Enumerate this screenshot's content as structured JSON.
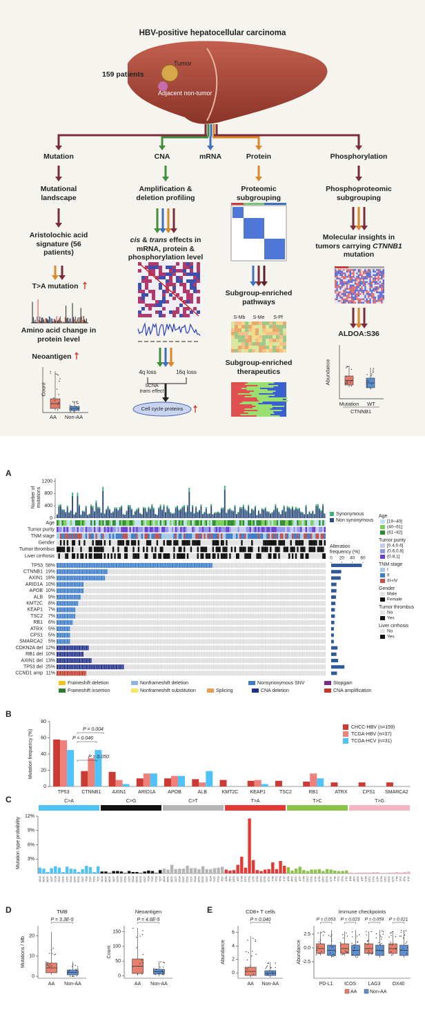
{
  "abstract": {
    "title": "HBV-positive hepatocellular carcinoma",
    "patients": "159 patients",
    "tumor": "Tumor",
    "adjacent": "Adjacent non-tumor",
    "branches": [
      "Mutation",
      "CNA",
      "mRNA",
      "Protein",
      "Phosphorylation"
    ],
    "mutation": {
      "landscape": "Mutational landscape",
      "signature": "Aristolochic acid signature (56 patients)",
      "ta": "T>A mutation",
      "amino": "Amino acid change in protein level",
      "neoantigen": "Neoantigen",
      "y_label": "Count",
      "groups": [
        "AA",
        "Non-AA"
      ]
    },
    "cna": {
      "profiling": "Amplification & deletion profiling",
      "effects": [
        "cis",
        " & ",
        "trans",
        " effects in mRNA, protein & phosphorylation level"
      ],
      "loss": [
        "4q loss",
        "16q loss"
      ],
      "scna": [
        "SCNA",
        "trans effect"
      ],
      "cell_cycle": "Cell cycle proteins"
    },
    "protein": {
      "subgrouping": "Proteomic subgrouping",
      "pathways": "Subgroup-enriched pathways",
      "subgroups": [
        "S-Mb",
        "S-Me",
        "S-Pf"
      ],
      "therapeutics": "Subgroup-enriched therapeutics"
    },
    "phospho": {
      "subgrouping": "Phosphoproteomic subgrouping",
      "insights": [
        "Molecular insights in tumors carrying ",
        "CTNNB1",
        " mutation"
      ],
      "site": "ALDOA:S36",
      "y_label": "Abundance",
      "groups": [
        "Mutation",
        "WT"
      ],
      "gene": "CTNNB1"
    }
  },
  "panel_a": {
    "label": "A",
    "y_label": [
      "Number of",
      "mutations"
    ],
    "ylim": [
      0,
      1300
    ],
    "yticks": [
      0,
      400,
      800,
      1200
    ],
    "mutation_legend": [
      {
        "name": "Synonymous",
        "color": "#3cb371"
      },
      {
        "name": "Non synonymous",
        "color": "#2e4e7e"
      }
    ],
    "track_legend": [
      {
        "title": "Age",
        "items": [
          {
            "name": "[19~40]",
            "color": "#bfe3f5"
          },
          {
            "name": "(40~61]",
            "color": "#7ccf5a"
          },
          {
            "name": "(61~82]",
            "color": "#2e8b2e"
          }
        ]
      },
      {
        "title": "Tumor purity",
        "items": [
          {
            "name": "[0.4,0.6]",
            "color": "#c5cbf5"
          },
          {
            "name": "(0.6,0.8]",
            "color": "#8f95e8"
          },
          {
            "name": "(0.8,1]",
            "color": "#6a3fd0"
          }
        ]
      },
      {
        "title": "TNM stage",
        "items": [
          {
            "name": "I",
            "color": "#a9c9e8"
          },
          {
            "name": "II",
            "color": "#3d7cc9"
          },
          {
            "name": "III+IV",
            "color": "#c0504d"
          }
        ]
      },
      {
        "title": "Gender",
        "items": [
          {
            "name": "Male",
            "color": "#e3e3e3"
          },
          {
            "name": "Female",
            "color": "#111111"
          }
        ]
      },
      {
        "title": "Tumor thrombus",
        "items": [
          {
            "name": "No",
            "color": "#e3e3e3"
          },
          {
            "name": "Yes",
            "color": "#111111"
          }
        ]
      },
      {
        "title": "Liver cirrhosis",
        "items": [
          {
            "name": "No",
            "color": "#e3e3e3"
          },
          {
            "name": "Yes",
            "color": "#111111"
          }
        ]
      }
    ],
    "freq_label": [
      "Alteration",
      "frequency (%)"
    ],
    "freq_lim": [
      0,
      60
    ],
    "freq_ticks": [
      0,
      20,
      40,
      60
    ],
    "genes": [
      {
        "name": "TP53",
        "freq": 58,
        "label": "58%",
        "color": "#3d7cc9"
      },
      {
        "name": "CTNNB1",
        "freq": 19,
        "label": "19%",
        "color": "#3d7cc9"
      },
      {
        "name": "AXIN1",
        "freq": 18,
        "label": "18%",
        "color": "#3d7cc9"
      },
      {
        "name": "ARID1A",
        "freq": 10,
        "label": "10%",
        "color": "#3d7cc9"
      },
      {
        "name": "APOB",
        "freq": 10,
        "label": "10%",
        "color": "#3d7cc9"
      },
      {
        "name": "ALB",
        "freq": 9,
        "label": "9%",
        "color": "#3d7cc9"
      },
      {
        "name": "KMT2C",
        "freq": 8,
        "label": "8%",
        "color": "#3d7cc9"
      },
      {
        "name": "KEAP1",
        "freq": 7,
        "label": "7%",
        "color": "#3d7cc9"
      },
      {
        "name": "TSC2",
        "freq": 7,
        "label": "7%",
        "color": "#3d7cc9"
      },
      {
        "name": "RB1",
        "freq": 6,
        "label": "6%",
        "color": "#3d7cc9"
      },
      {
        "name": "ATRX",
        "freq": 5,
        "label": "5%",
        "color": "#3d7cc9"
      },
      {
        "name": "CPS1",
        "freq": 5,
        "label": "5%",
        "color": "#3d7cc9"
      },
      {
        "name": "SMARCA2",
        "freq": 5,
        "label": "5%",
        "color": "#3d7cc9"
      },
      {
        "name": "CDKN2A del",
        "freq": 12,
        "label": "12%",
        "color": "#1f2f8a"
      },
      {
        "name": "RB1 del",
        "freq": 10,
        "label": "10%",
        "color": "#1f2f8a"
      },
      {
        "name": "AXIN1 del",
        "freq": 13,
        "label": "13%",
        "color": "#1f2f8a"
      },
      {
        "name": "TP53 del",
        "freq": 25,
        "label": "25%",
        "color": "#1f2f8a"
      },
      {
        "name": "CCND1 amp",
        "freq": 11,
        "label": "11%",
        "color": "#c0392b"
      }
    ],
    "alteration_legend": [
      {
        "name": "Frameshift deletion",
        "color": "#f0c419"
      },
      {
        "name": "Nonframeshift deletion",
        "color": "#8fb4e0"
      },
      {
        "name": "Nonsynonymous SNV",
        "color": "#3d7cc9"
      },
      {
        "name": "Stopgain",
        "color": "#7b2a8a"
      },
      {
        "name": "Frameshift insertion",
        "color": "#2e7d32"
      },
      {
        "name": "Nonframeshift substitution",
        "color": "#f5e663"
      },
      {
        "name": "Splicing",
        "color": "#e8a050"
      },
      {
        "name": "CNA deletion",
        "color": "#1f2f8a"
      },
      {
        "name": "CNA amplification",
        "color": "#c0392b"
      }
    ]
  },
  "chart_data": [
    {
      "type": "bar",
      "label": "B",
      "y_label": "Mutation frequency (%)",
      "categories": [
        "TP53",
        "CTNNB1",
        "AXIN1",
        "ARID1A",
        "APOB",
        "ALB",
        "KMT2C",
        "KEAP1",
        "TSC2",
        "RB1",
        "ATRX",
        "CPS1",
        "SMARCA2"
      ],
      "series": [
        {
          "name": "CHCC-HBV (n=159)",
          "color": "#cc3b33",
          "values": [
            58,
            19,
            18,
            10,
            10,
            9,
            8,
            7,
            7,
            6,
            5,
            5,
            5
          ]
        },
        {
          "name": "TCGA-HBV (n=37)",
          "color": "#f0807a",
          "values": [
            57,
            35,
            8,
            16,
            13,
            5,
            0,
            8,
            0,
            16,
            0,
            0,
            0
          ]
        },
        {
          "name": "TCGA-HCV (n=31)",
          "color": "#4fc3f7",
          "values": [
            45,
            45,
            3,
            16,
            13,
            19,
            0,
            3,
            0,
            10,
            0,
            0,
            0
          ]
        }
      ],
      "ylim": [
        0,
        80
      ],
      "yticks": [
        0,
        20,
        40,
        60,
        80
      ],
      "annotations": [
        "P = 0.004",
        "P = 0.046",
        "P = 0.050"
      ]
    },
    {
      "type": "bar",
      "label": "C",
      "y_label": "Mutation type probability",
      "groups": [
        {
          "name": "C>A",
          "color": "#4fc3f7"
        },
        {
          "name": "C>G",
          "color": "#111111"
        },
        {
          "name": "C>T",
          "color": "#b5b5b5"
        },
        {
          "name": "T>A",
          "color": "#e53935"
        },
        {
          "name": "T>C",
          "color": "#8bc34a"
        },
        {
          "name": "T>G",
          "color": "#f4b6c2"
        }
      ],
      "categories": [
        "ACA",
        "ACC",
        "ACG",
        "ACT",
        "CCA",
        "CCC",
        "CCG",
        "CCT",
        "GCA",
        "GCC",
        "GCG",
        "GCT",
        "TCA",
        "TCC",
        "TCG",
        "TCT",
        "ACA",
        "ACC",
        "ACG",
        "ACT",
        "CCA",
        "CCC",
        "CCG",
        "CCT",
        "GCA",
        "GCC",
        "GCG",
        "GCT",
        "TCA",
        "TCC",
        "TCG",
        "TCT",
        "ACA",
        "ACC",
        "ACG",
        "ACT",
        "CCA",
        "CCC",
        "CCG",
        "CCT",
        "GCA",
        "GCC",
        "GCG",
        "GCT",
        "TCA",
        "TCC",
        "TCG",
        "TCT",
        "ATA",
        "ATC",
        "ATG",
        "ATT",
        "CTA",
        "CTC",
        "CTG",
        "CTT",
        "GTA",
        "GTC",
        "GTG",
        "GTT",
        "TTA",
        "TTC",
        "TTG",
        "TTT",
        "ATA",
        "ATC",
        "ATG",
        "ATT",
        "CTA",
        "CTC",
        "CTG",
        "CTT",
        "GTA",
        "GTC",
        "GTG",
        "GTT",
        "TTA",
        "TTC",
        "TTG",
        "TTT",
        "ATA",
        "ATC",
        "ATG",
        "ATT",
        "CTA",
        "CTC",
        "CTG",
        "CTT",
        "GTA",
        "GTC",
        "GTG",
        "GTT",
        "TTA",
        "TTC",
        "TTG",
        "TTT"
      ],
      "values": [
        1.2,
        1.0,
        0.3,
        1.1,
        1.5,
        1.2,
        0.3,
        1.4,
        1.0,
        0.9,
        0.3,
        0.9,
        1.6,
        1.3,
        0.3,
        1.5,
        0.4,
        0.4,
        0.1,
        0.5,
        0.5,
        0.4,
        0.1,
        0.5,
        0.3,
        0.3,
        0.1,
        0.4,
        0.6,
        0.5,
        0.1,
        0.7,
        1.0,
        0.8,
        1.8,
        0.9,
        1.0,
        1.0,
        1.6,
        1.1,
        1.1,
        0.9,
        1.5,
        0.9,
        0.9,
        1.1,
        1.2,
        1.4,
        0.8,
        0.6,
        0.7,
        1.8,
        3.5,
        1.2,
        11.5,
        2.8,
        0.7,
        0.5,
        0.8,
        0.9,
        2.3,
        0.9,
        2.6,
        1.6,
        1.3,
        0.6,
        1.0,
        1.4,
        0.7,
        0.5,
        0.8,
        0.8,
        0.9,
        0.5,
        0.9,
        0.8,
        0.6,
        0.5,
        0.5,
        0.6,
        0.2,
        0.1,
        0.2,
        0.2,
        0.2,
        0.2,
        0.3,
        0.3,
        0.1,
        0.1,
        0.2,
        0.2,
        0.3,
        0.2,
        0.3,
        0.4
      ],
      "ylim": [
        0,
        12
      ],
      "yticks": [
        {
          "value": 3,
          "label": "3%"
        },
        {
          "value": 6,
          "label": "6%"
        },
        {
          "value": 9,
          "label": "9%"
        },
        {
          "value": 12,
          "label": "12%"
        }
      ]
    }
  ],
  "panel_d": {
    "label": "D",
    "plots": [
      {
        "title": "TMB",
        "p": "P = 3.3E-5",
        "y_label": "Mutations / Mb",
        "ylim": [
          -1,
          25
        ],
        "yticks": [
          0,
          10,
          20
        ],
        "groups": [
          "AA",
          "Non-AA"
        ]
      },
      {
        "title": "Neoantigen",
        "p": "P = 4.6E-5",
        "y_label": "Count",
        "ylim": [
          -8,
          170
        ],
        "yticks": [
          0,
          50,
          100,
          150
        ],
        "groups": [
          "AA",
          "Non-AA"
        ]
      }
    ]
  },
  "panel_e": {
    "label": "E",
    "cd8": {
      "title": "CD8+ T cells",
      "p": "P = 0.040",
      "y_label": "Abundance",
      "ylim": [
        -0.8,
        7
      ],
      "yticks": [
        0,
        2,
        4,
        6
      ],
      "groups": [
        "AA",
        "Non-AA"
      ]
    },
    "checkpoints": {
      "title": "Immune checkpoints",
      "p": [
        "P = 0.053",
        "P = 0.023",
        "P = 0.059",
        "P = 0.021"
      ],
      "y_label": "Abundance",
      "ylim": [
        -5.5,
        4
      ],
      "yticks": [
        -2.5,
        {
          "value": 0,
          "label": "0.0"
        },
        {
          "value": 2.5,
          "label": "2.5"
        }
      ],
      "categories": [
        "PD-L1",
        "ICOS",
        "LAG3",
        "OX40"
      ],
      "legend": [
        {
          "name": "AA",
          "color": "#e57f6e"
        },
        {
          "name": "Non-AA",
          "color": "#5b8fd0"
        }
      ]
    }
  }
}
